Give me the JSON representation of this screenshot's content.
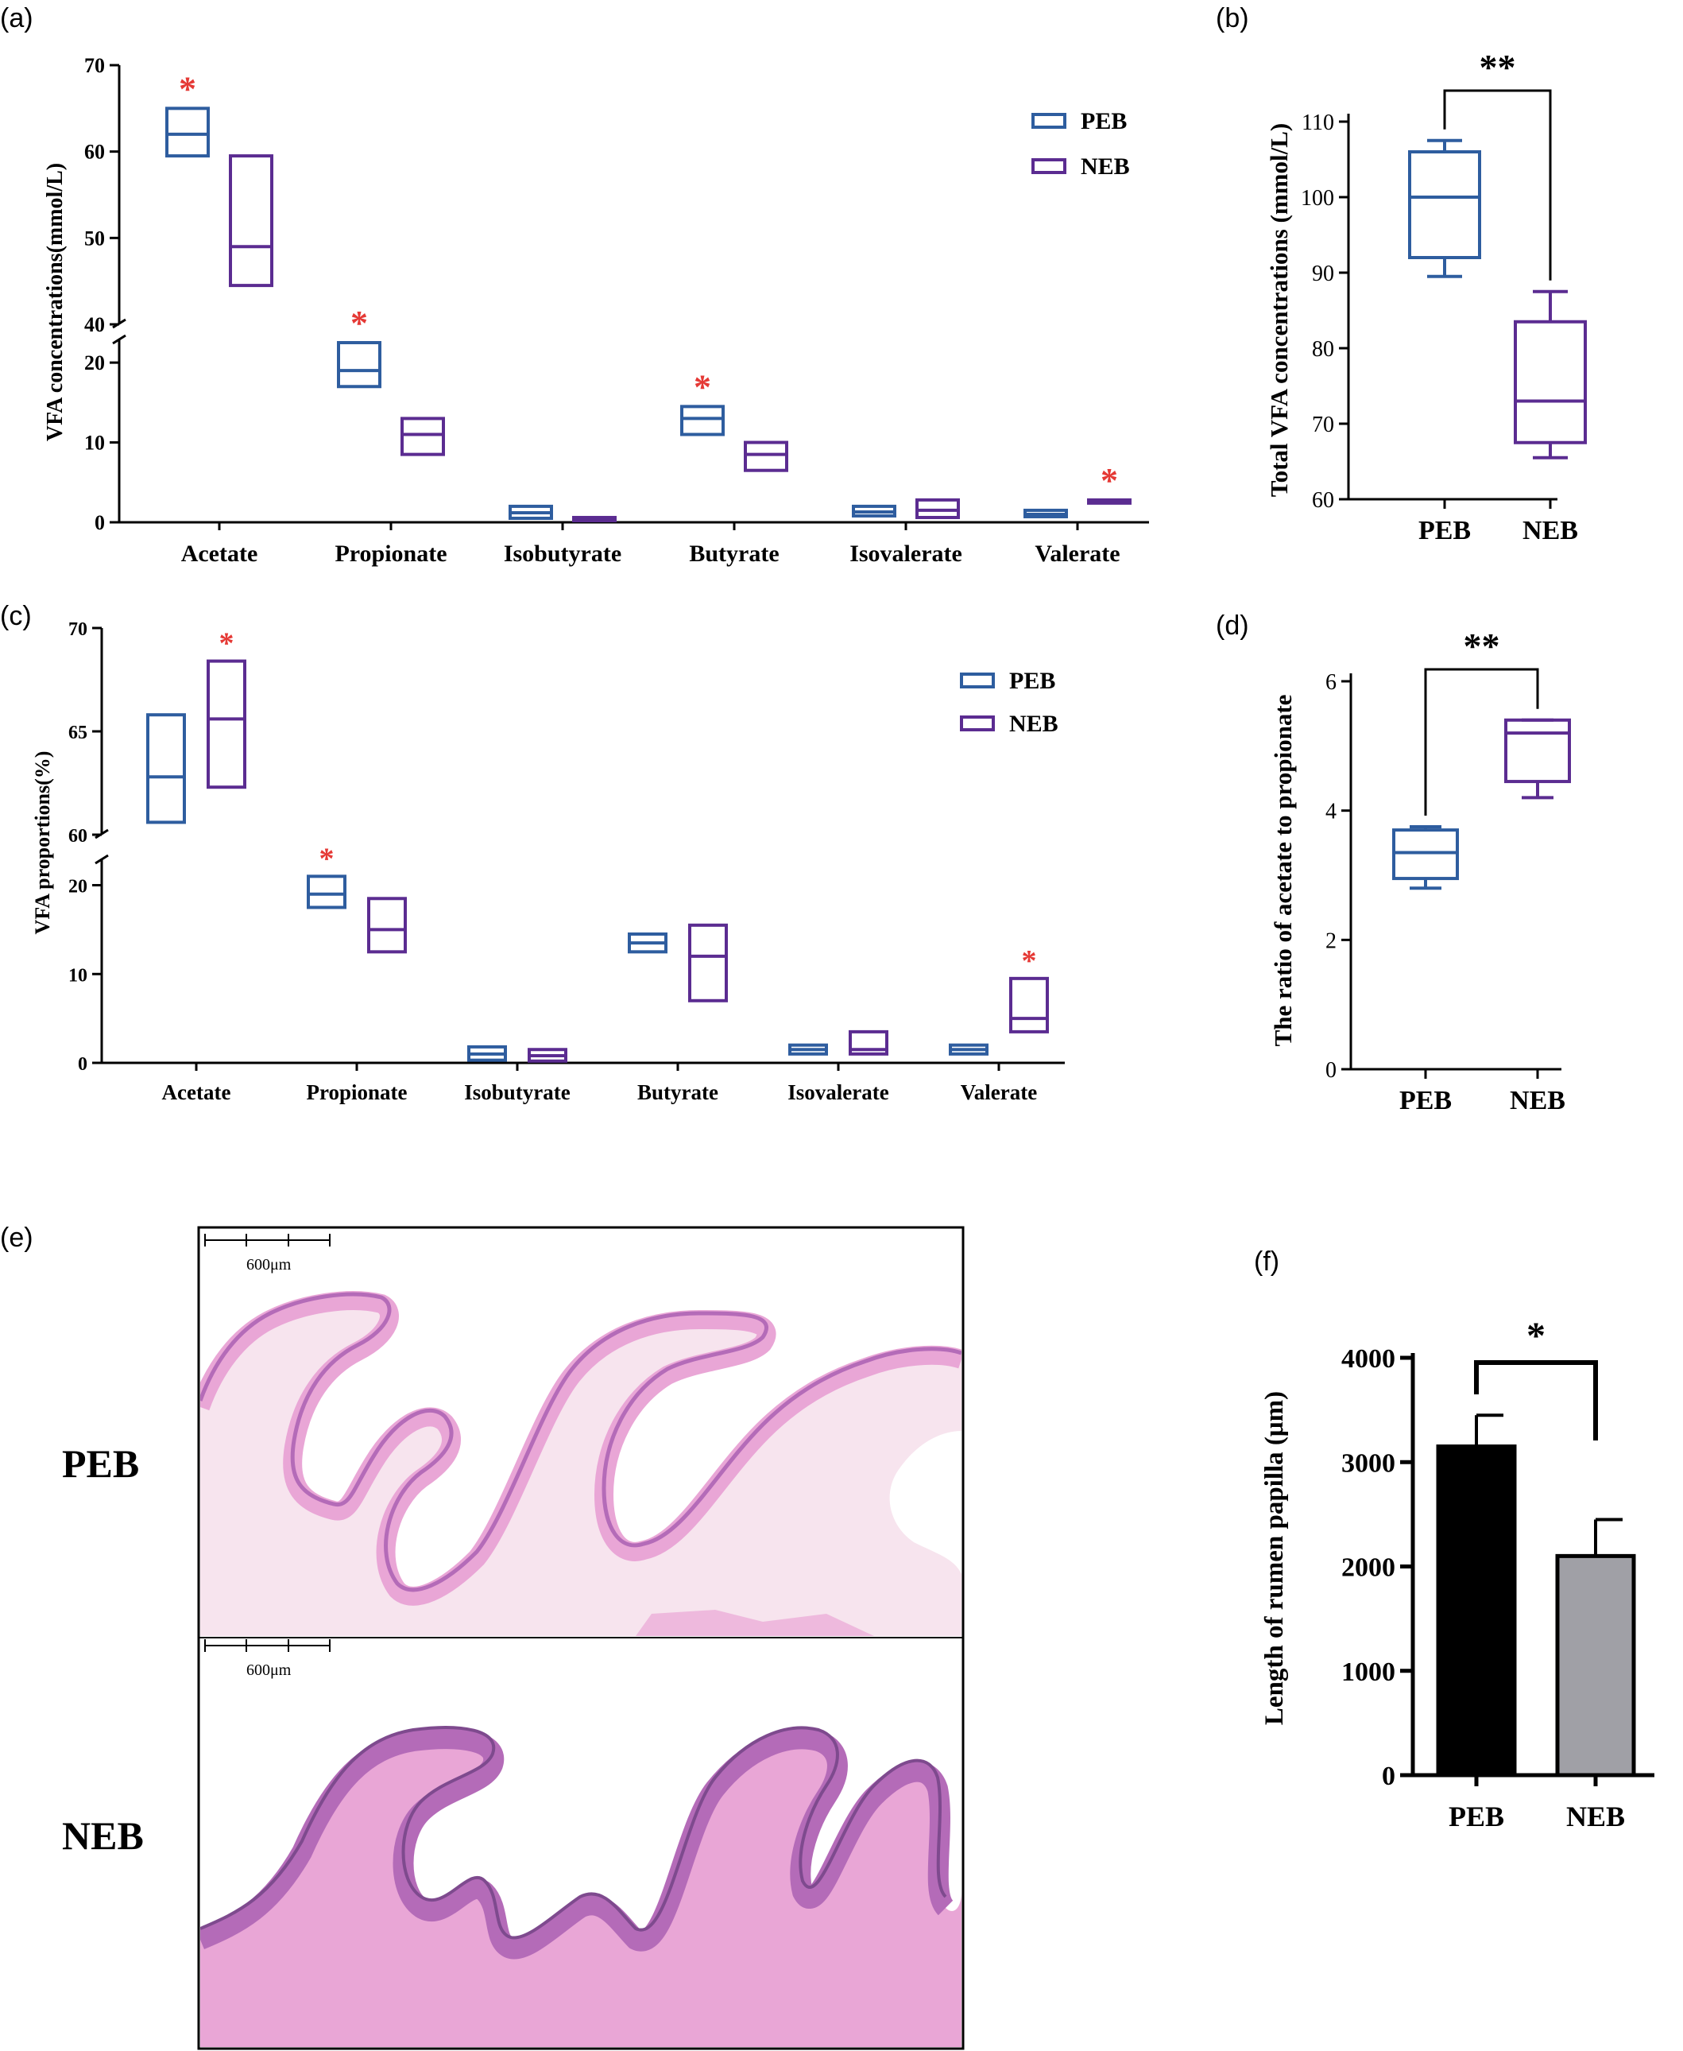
{
  "colors": {
    "peb_blue": "#2E5D9F",
    "neb_purple": "#5B2C91",
    "star_red": "#E53935",
    "bar_black": "#000000",
    "bar_gray": "#A0A0A6",
    "tissue_pink": "#E9A6D6",
    "tissue_dark": "#B46BB8"
  },
  "panels": {
    "a": {
      "label": "(a)",
      "chart_data": {
        "type": "box",
        "ylabel": "VFA concentrations(mmol/L)",
        "categories": [
          "Acetate",
          "Propionate",
          "Isobutyrate",
          "Butyrate",
          "Isovalerate",
          "Valerate"
        ],
        "y_ticks_lower": [
          "0",
          "10",
          "20"
        ],
        "y_ticks_upper": [
          "40",
          "50",
          "60",
          "70"
        ],
        "axis_break": [
          23,
          40
        ],
        "legend": [
          "PEB",
          "NEB"
        ],
        "legend_position": "top-right",
        "series": [
          {
            "name": "PEB",
            "boxes": [
              [
                59.5,
                62,
                65
              ],
              [
                17,
                19,
                22.5
              ],
              [
                0.5,
                1.2,
                2
              ],
              [
                11,
                13,
                14.5
              ],
              [
                0.8,
                1.3,
                2
              ],
              [
                0.7,
                1,
                1.5
              ]
            ]
          },
          {
            "name": "NEB",
            "boxes": [
              [
                44.5,
                49,
                59.5
              ],
              [
                8.5,
                11,
                13
              ],
              [
                0.2,
                0.4,
                0.6
              ],
              [
                6.5,
                8.5,
                10
              ],
              [
                0.6,
                1.5,
                2.8
              ],
              [
                2.4,
                2.6,
                2.8
              ]
            ]
          }
        ],
        "stars": [
          {
            "category": "Acetate",
            "series": "PEB",
            "text": "*"
          },
          {
            "category": "Propionate",
            "series": "PEB",
            "text": "*"
          },
          {
            "category": "Butyrate",
            "series": "PEB",
            "text": "*"
          },
          {
            "category": "Valerate",
            "series": "NEB",
            "text": "*"
          }
        ]
      }
    },
    "b": {
      "label": "(b)",
      "chart_data": {
        "type": "box",
        "ylabel": "Total VFA concentrations (mmol/L)",
        "categories": [
          "PEB",
          "NEB"
        ],
        "ylim": [
          60,
          110
        ],
        "y_ticks": [
          "60",
          "70",
          "80",
          "90",
          "100",
          "110"
        ],
        "boxes": [
          [
            89.5,
            92,
            100,
            106,
            107.5
          ],
          [
            65.5,
            67.5,
            73,
            83.5,
            87.5
          ]
        ],
        "significance": "**"
      }
    },
    "c": {
      "label": "(c)",
      "chart_data": {
        "type": "box",
        "ylabel": "VFA proportions(%)",
        "categories": [
          "Acetate",
          "Propionate",
          "Isobutyrate",
          "Butyrate",
          "Isovalerate",
          "Valerate"
        ],
        "y_ticks_lower": [
          "0",
          "10",
          "20"
        ],
        "y_ticks_upper": [
          "60",
          "65",
          "70"
        ],
        "axis_break": [
          23,
          60
        ],
        "legend": [
          "PEB",
          "NEB"
        ],
        "legend_position": "top-right",
        "series": [
          {
            "name": "PEB",
            "boxes": [
              [
                60.6,
                62.8,
                65.8
              ],
              [
                17.5,
                19,
                21
              ],
              [
                0.3,
                1,
                1.8
              ],
              [
                12.5,
                13.5,
                14.5
              ],
              [
                1,
                1.5,
                2
              ],
              [
                1,
                1.5,
                2
              ]
            ]
          },
          {
            "name": "NEB",
            "boxes": [
              [
                62.3,
                65.6,
                68.4
              ],
              [
                12.5,
                15,
                18.5
              ],
              [
                0.2,
                0.8,
                1.5
              ],
              [
                7,
                12,
                15.5
              ],
              [
                1,
                1.5,
                3.5
              ],
              [
                3.5,
                5,
                9.5
              ]
            ]
          }
        ],
        "stars": [
          {
            "category": "Acetate",
            "series": "NEB",
            "text": "*"
          },
          {
            "category": "Propionate",
            "series": "PEB",
            "text": "*"
          },
          {
            "category": "Valerate",
            "series": "NEB",
            "text": "*"
          }
        ]
      }
    },
    "d": {
      "label": "(d)",
      "chart_data": {
        "type": "box",
        "ylabel": "The ratio of acetate to propionate",
        "categories": [
          "PEB",
          "NEB"
        ],
        "ylim": [
          0,
          6
        ],
        "y_ticks": [
          "0",
          "2",
          "4",
          "6"
        ],
        "boxes": [
          [
            2.8,
            2.95,
            3.35,
            3.7,
            3.75
          ],
          [
            4.2,
            4.45,
            5.2,
            5.4,
            5.4
          ]
        ],
        "significance": "**"
      }
    },
    "e": {
      "label": "(e)",
      "scale_text": "600μm",
      "rows": [
        "PEB",
        "NEB"
      ]
    },
    "f": {
      "label": "(f)",
      "chart_data": {
        "type": "bar",
        "ylabel": "Length of rumen papilla (μm)",
        "categories": [
          "PEB",
          "NEB"
        ],
        "values": [
          3150,
          2100
        ],
        "errors": [
          300,
          350
        ],
        "ylim": [
          0,
          4000
        ],
        "y_ticks": [
          "0",
          "1000",
          "2000",
          "3000",
          "4000"
        ],
        "significance": "*"
      }
    }
  }
}
